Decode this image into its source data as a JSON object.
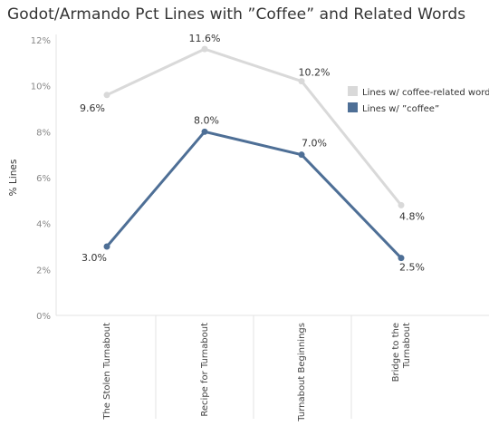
{
  "chart_data": {
    "type": "line",
    "title": "Godot/Armando Pct Lines with ”Coffee” and Related Words",
    "xlabel": "",
    "ylabel": "% Lines",
    "ylim": [
      0,
      12
    ],
    "yticks": [
      "0%",
      "2%",
      "4%",
      "6%",
      "8%",
      "10%",
      "12%"
    ],
    "categories": [
      "The Stolen Turnabout",
      "Recipe for Turnabout",
      "Turnabout Beginnings",
      "Bridge to the Turnabout"
    ],
    "series": [
      {
        "name": "Lines w/ coffee-related word",
        "color": "#d9d9d9",
        "values": [
          9.6,
          11.6,
          10.2,
          4.8
        ],
        "labels": [
          "9.6%",
          "11.6%",
          "10.2%",
          "4.8%"
        ]
      },
      {
        "name": "Lines w/ ”coffee”",
        "color": "#4e6f96",
        "values": [
          3.0,
          8.0,
          7.0,
          2.5
        ],
        "labels": [
          "3.0%",
          "8.0%",
          "7.0%",
          "2.5%"
        ]
      }
    ],
    "grid": false,
    "legend": "top-right"
  }
}
